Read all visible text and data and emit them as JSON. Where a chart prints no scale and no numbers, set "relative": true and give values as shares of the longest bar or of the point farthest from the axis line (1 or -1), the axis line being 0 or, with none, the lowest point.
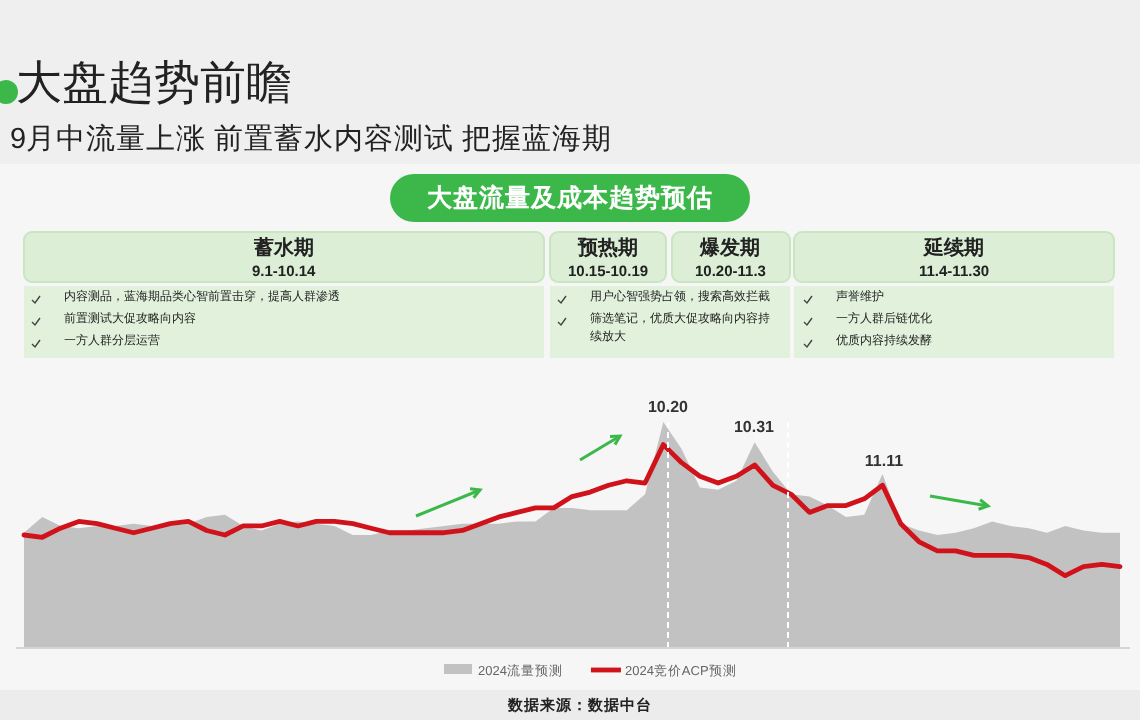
{
  "chart_data": {
    "type": "area",
    "title": "大盘趋势前瞻",
    "subtitle": "9月中流量上涨 前置蓄水内容测试 把握蓝海期",
    "relative": true,
    "categories": [
      null,
      null,
      null,
      null,
      null,
      null,
      null,
      null,
      null,
      null,
      null,
      null,
      null,
      null,
      null,
      null,
      null,
      null,
      null,
      null,
      null,
      null,
      null,
      null,
      null,
      null,
      null,
      null,
      null,
      null,
      null,
      null,
      null,
      null,
      null,
      null,
      null,
      null,
      null,
      null,
      null,
      null,
      null,
      null,
      null,
      null,
      null,
      null,
      null,
      null,
      null,
      null,
      null,
      null,
      null,
      null,
      null,
      null,
      null,
      null,
      null
    ],
    "grid": false,
    "legend": "bottom",
    "series": [
      {
        "name": "2024流量预测",
        "color": "#c2c2c2",
        "values": [
          0.51,
          0.58,
          0.54,
          0.53,
          0.54,
          0.54,
          0.55,
          0.54,
          0.54,
          0.55,
          0.58,
          0.59,
          0.54,
          0.52,
          0.55,
          0.56,
          0.55,
          0.54,
          0.5,
          0.5,
          0.52,
          0.52,
          0.53,
          0.54,
          0.55,
          0.55,
          0.55,
          0.56,
          0.56,
          0.62,
          0.62,
          0.61,
          0.61,
          0.61,
          0.68,
          1.0,
          0.88,
          0.71,
          0.7,
          0.74,
          0.91,
          0.78,
          0.68,
          0.67,
          0.63,
          0.58,
          0.59,
          0.77,
          0.55,
          0.52,
          0.5,
          0.51,
          0.53,
          0.56,
          0.54,
          0.53,
          0.51,
          0.54,
          0.52,
          0.51,
          0.51
        ]
      },
      {
        "name": "2024竞价ACP预测",
        "type": "line",
        "color": "#d0121b",
        "values": [
          0.5,
          0.49,
          0.53,
          0.56,
          0.55,
          0.53,
          0.51,
          0.53,
          0.55,
          0.56,
          0.52,
          0.5,
          0.54,
          0.54,
          0.56,
          0.54,
          0.56,
          0.56,
          0.55,
          0.53,
          0.51,
          0.51,
          0.51,
          0.51,
          0.52,
          0.55,
          0.58,
          0.6,
          0.62,
          0.62,
          0.67,
          0.69,
          0.72,
          0.74,
          0.73,
          0.9,
          0.82,
          0.76,
          0.73,
          0.76,
          0.81,
          0.72,
          0.68,
          0.6,
          0.63,
          0.63,
          0.66,
          0.72,
          0.55,
          0.47,
          0.43,
          0.43,
          0.41,
          0.41,
          0.41,
          0.4,
          0.37,
          0.32,
          0.36,
          0.37,
          0.36
        ]
      }
    ],
    "annotations": [
      "大盘流量及成本趋势预估",
      "蓄水期",
      "9.1-10.14",
      "内容测品，蓝海期品类心智前置击穿，提高人群渗透",
      "前置测试大促攻略向内容",
      "一方人群分层运营",
      "预热期",
      "10.15-10.19",
      "爆发期",
      "10.20-11.3",
      "用户心智强势占领，搜索高效拦截",
      "筛选笔记，优质大促攻略向内容持续放大",
      "延续期",
      "11.4-11.30",
      "声誉维护",
      "一方人群后链优化",
      "优质内容持续发酵",
      "数据来源：数据中台",
      "10.20",
      "10.31",
      "11.11"
    ]
  }
}
